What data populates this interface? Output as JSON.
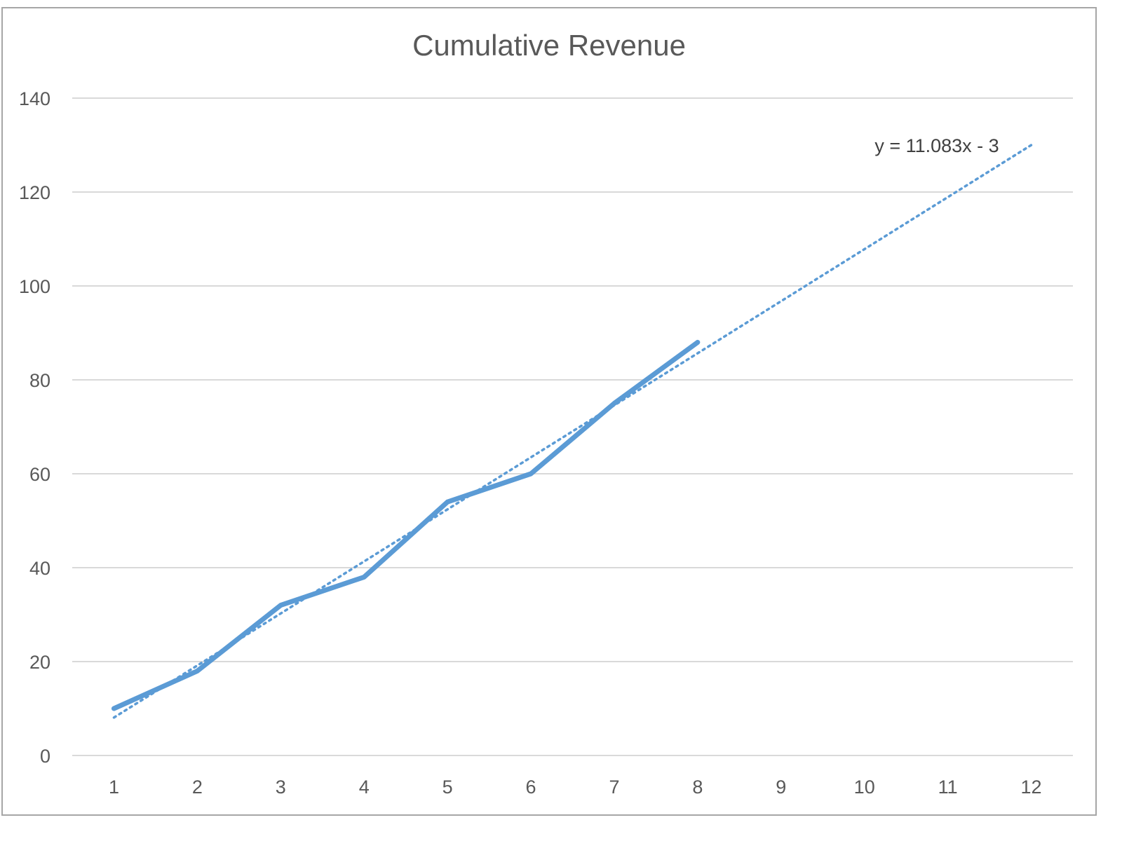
{
  "chart_data": {
    "type": "line",
    "title": "Cumulative Revenue",
    "xlabel": "",
    "ylabel": "",
    "categories": [
      1,
      2,
      3,
      4,
      5,
      6,
      7,
      8,
      9,
      10,
      11,
      12
    ],
    "series": [
      {
        "x": [
          1,
          2,
          3,
          4,
          5,
          6,
          7,
          8
        ],
        "values": [
          10,
          18,
          32,
          38,
          54,
          60,
          75,
          88
        ],
        "color": "#5b9bd5"
      }
    ],
    "trendline": {
      "type": "linear",
      "slope": 11.083,
      "intercept": -3,
      "x_range": [
        1,
        12
      ],
      "label": "y = 11.083x - 3",
      "style": "dotted",
      "color": "#5b9bd5"
    },
    "ylim": [
      0,
      140
    ],
    "yticks": [
      0,
      20,
      40,
      60,
      80,
      100,
      120,
      140
    ],
    "grid": true,
    "gridline_color": "#d9d9d9",
    "legend": "none"
  }
}
